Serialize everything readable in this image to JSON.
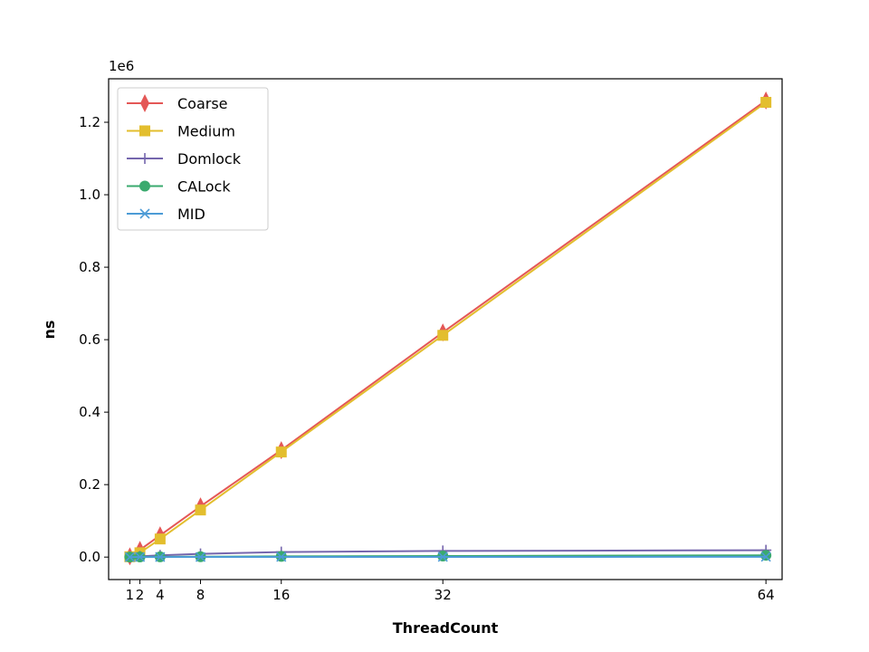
{
  "chart_data": {
    "type": "line",
    "title": "",
    "xlabel": "ThreadCount",
    "ylabel": "ns",
    "y_offset_label": "1e6",
    "xlim": [
      -1.1,
      65.6
    ],
    "ylim": [
      -62000,
      1320000
    ],
    "x_ticks": [
      1,
      2,
      4,
      8,
      16,
      32,
      64
    ],
    "y_ticks": [
      0,
      200000,
      400000,
      600000,
      800000,
      1000000,
      1200000
    ],
    "y_tick_labels": [
      "0.0",
      "0.2",
      "0.4",
      "0.6",
      "0.8",
      "1.0",
      "1.2"
    ],
    "grid": false,
    "legend_position": "top-left",
    "x": [
      1,
      2,
      4,
      8,
      16,
      32,
      64
    ],
    "series": [
      {
        "name": "Coarse",
        "color": "#e45756",
        "marker": "diamond",
        "values": [
          2000,
          20000,
          60000,
          140000,
          295000,
          620000,
          1260000
        ]
      },
      {
        "name": "Medium",
        "color": "#e3be2e",
        "marker": "square",
        "values": [
          1000,
          12000,
          50000,
          130000,
          290000,
          612000,
          1255000
        ]
      },
      {
        "name": "Domlock",
        "color": "#7566ad",
        "marker": "plus",
        "values": [
          500,
          2000,
          5000,
          9000,
          14000,
          17000,
          19000
        ]
      },
      {
        "name": "CALock",
        "color": "#3aaa6e",
        "marker": "circle",
        "values": [
          200,
          400,
          800,
          1200,
          2000,
          3000,
          5000
        ]
      },
      {
        "name": "MID",
        "color": "#4c9bd6",
        "marker": "x",
        "values": [
          100,
          200,
          300,
          400,
          500,
          600,
          800
        ]
      }
    ]
  }
}
